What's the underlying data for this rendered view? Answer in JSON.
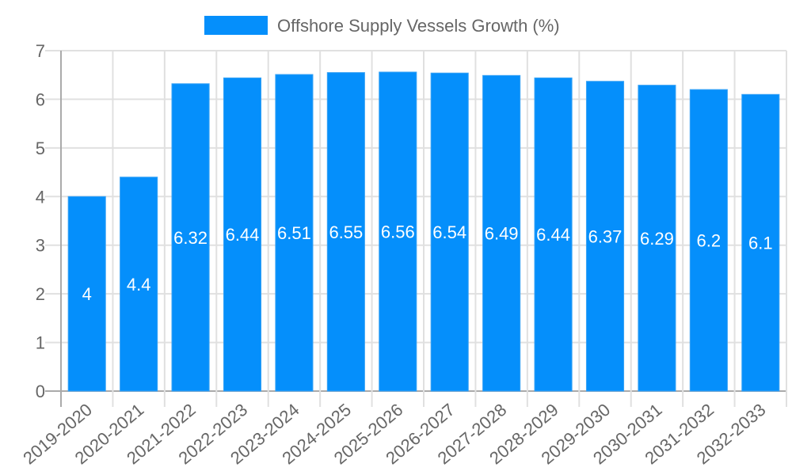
{
  "legend": {
    "label": "Offshore Supply Vessels Growth (%)",
    "color": "#058ffb"
  },
  "colors": {
    "bar": "#058ffb",
    "bar_border": "#3aa3f5",
    "grid": "#e0e0e0",
    "axis": "#aaaaaa",
    "text": "#666666"
  },
  "chart_data": {
    "type": "bar",
    "title": "",
    "xlabel": "",
    "ylabel": "",
    "categories": [
      "2019-2020",
      "2020-2021",
      "2021-2022",
      "2022-2023",
      "2023-2024",
      "2024-2025",
      "2025-2026",
      "2026-2027",
      "2027-2028",
      "2028-2029",
      "2029-2030",
      "2030-2031",
      "2031-2032",
      "2032-2033"
    ],
    "series": [
      {
        "name": "Offshore Supply Vessels Growth (%)",
        "values": [
          4,
          4.4,
          6.32,
          6.44,
          6.51,
          6.55,
          6.56,
          6.54,
          6.49,
          6.44,
          6.37,
          6.29,
          6.2,
          6.1
        ]
      }
    ],
    "ylim": [
      0,
      7
    ],
    "yticks": [
      0,
      1,
      2,
      3,
      4,
      5,
      6,
      7
    ],
    "grid": true,
    "legend_position": "top",
    "data_labels": true
  }
}
